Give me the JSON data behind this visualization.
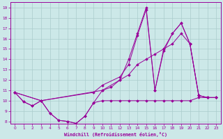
{
  "xlabel": "Windchill (Refroidissement éolien,°C)",
  "bg_color": "#cce8e8",
  "line_color": "#990099",
  "grid_color": "#aacccc",
  "xlim": [
    -0.5,
    23.5
  ],
  "ylim": [
    7.8,
    19.5
  ],
  "xticks": [
    0,
    1,
    2,
    3,
    4,
    5,
    6,
    7,
    8,
    9,
    10,
    11,
    12,
    13,
    14,
    15,
    16,
    17,
    18,
    19,
    20,
    21,
    22,
    23
  ],
  "yticks": [
    8,
    9,
    10,
    11,
    12,
    13,
    14,
    15,
    16,
    17,
    18,
    19
  ],
  "lines": [
    {
      "x": [
        0,
        1,
        2,
        3,
        4,
        5,
        6,
        7,
        8,
        9,
        10,
        11,
        12,
        13,
        14,
        15,
        16,
        17,
        18,
        19,
        20,
        21,
        22,
        23
      ],
      "y": [
        10.8,
        9.9,
        9.5,
        10.0,
        8.8,
        8.1,
        8.0,
        7.8,
        8.5,
        9.8,
        10.0,
        10.0,
        10.0,
        10.0,
        10.0,
        10.0,
        10.0,
        10.0,
        10.0,
        10.0,
        10.0,
        10.3,
        10.3,
        10.3
      ]
    },
    {
      "x": [
        0,
        1,
        2,
        3,
        4,
        5,
        6,
        7,
        8,
        9,
        10,
        11,
        12,
        13,
        14,
        15,
        16,
        17,
        18,
        19,
        20,
        21,
        22,
        23
      ],
      "y": [
        10.8,
        9.9,
        9.5,
        10.0,
        8.8,
        8.1,
        8.0,
        7.8,
        8.5,
        9.8,
        11.0,
        11.3,
        12.0,
        12.5,
        13.5,
        14.0,
        14.5,
        15.0,
        15.5,
        16.5,
        15.5,
        10.5,
        10.3,
        10.3
      ]
    },
    {
      "x": [
        0,
        3,
        10,
        12,
        13,
        14,
        15,
        16,
        17,
        18,
        19,
        20,
        21,
        22,
        23
      ],
      "y": [
        10.8,
        10.0,
        11.0,
        12.0,
        14.0,
        16.5,
        19.0,
        11.0,
        14.8,
        16.5,
        17.5,
        15.5,
        10.5,
        10.3,
        10.3
      ]
    },
    {
      "x": [
        0,
        3,
        9,
        10,
        12,
        13,
        14,
        15,
        16,
        17,
        18,
        19,
        20,
        21,
        22,
        23
      ],
      "y": [
        10.8,
        10.0,
        10.8,
        11.5,
        12.3,
        13.5,
        16.3,
        18.8,
        11.0,
        15.0,
        16.5,
        17.5,
        15.5,
        10.5,
        10.3,
        10.3
      ]
    }
  ]
}
